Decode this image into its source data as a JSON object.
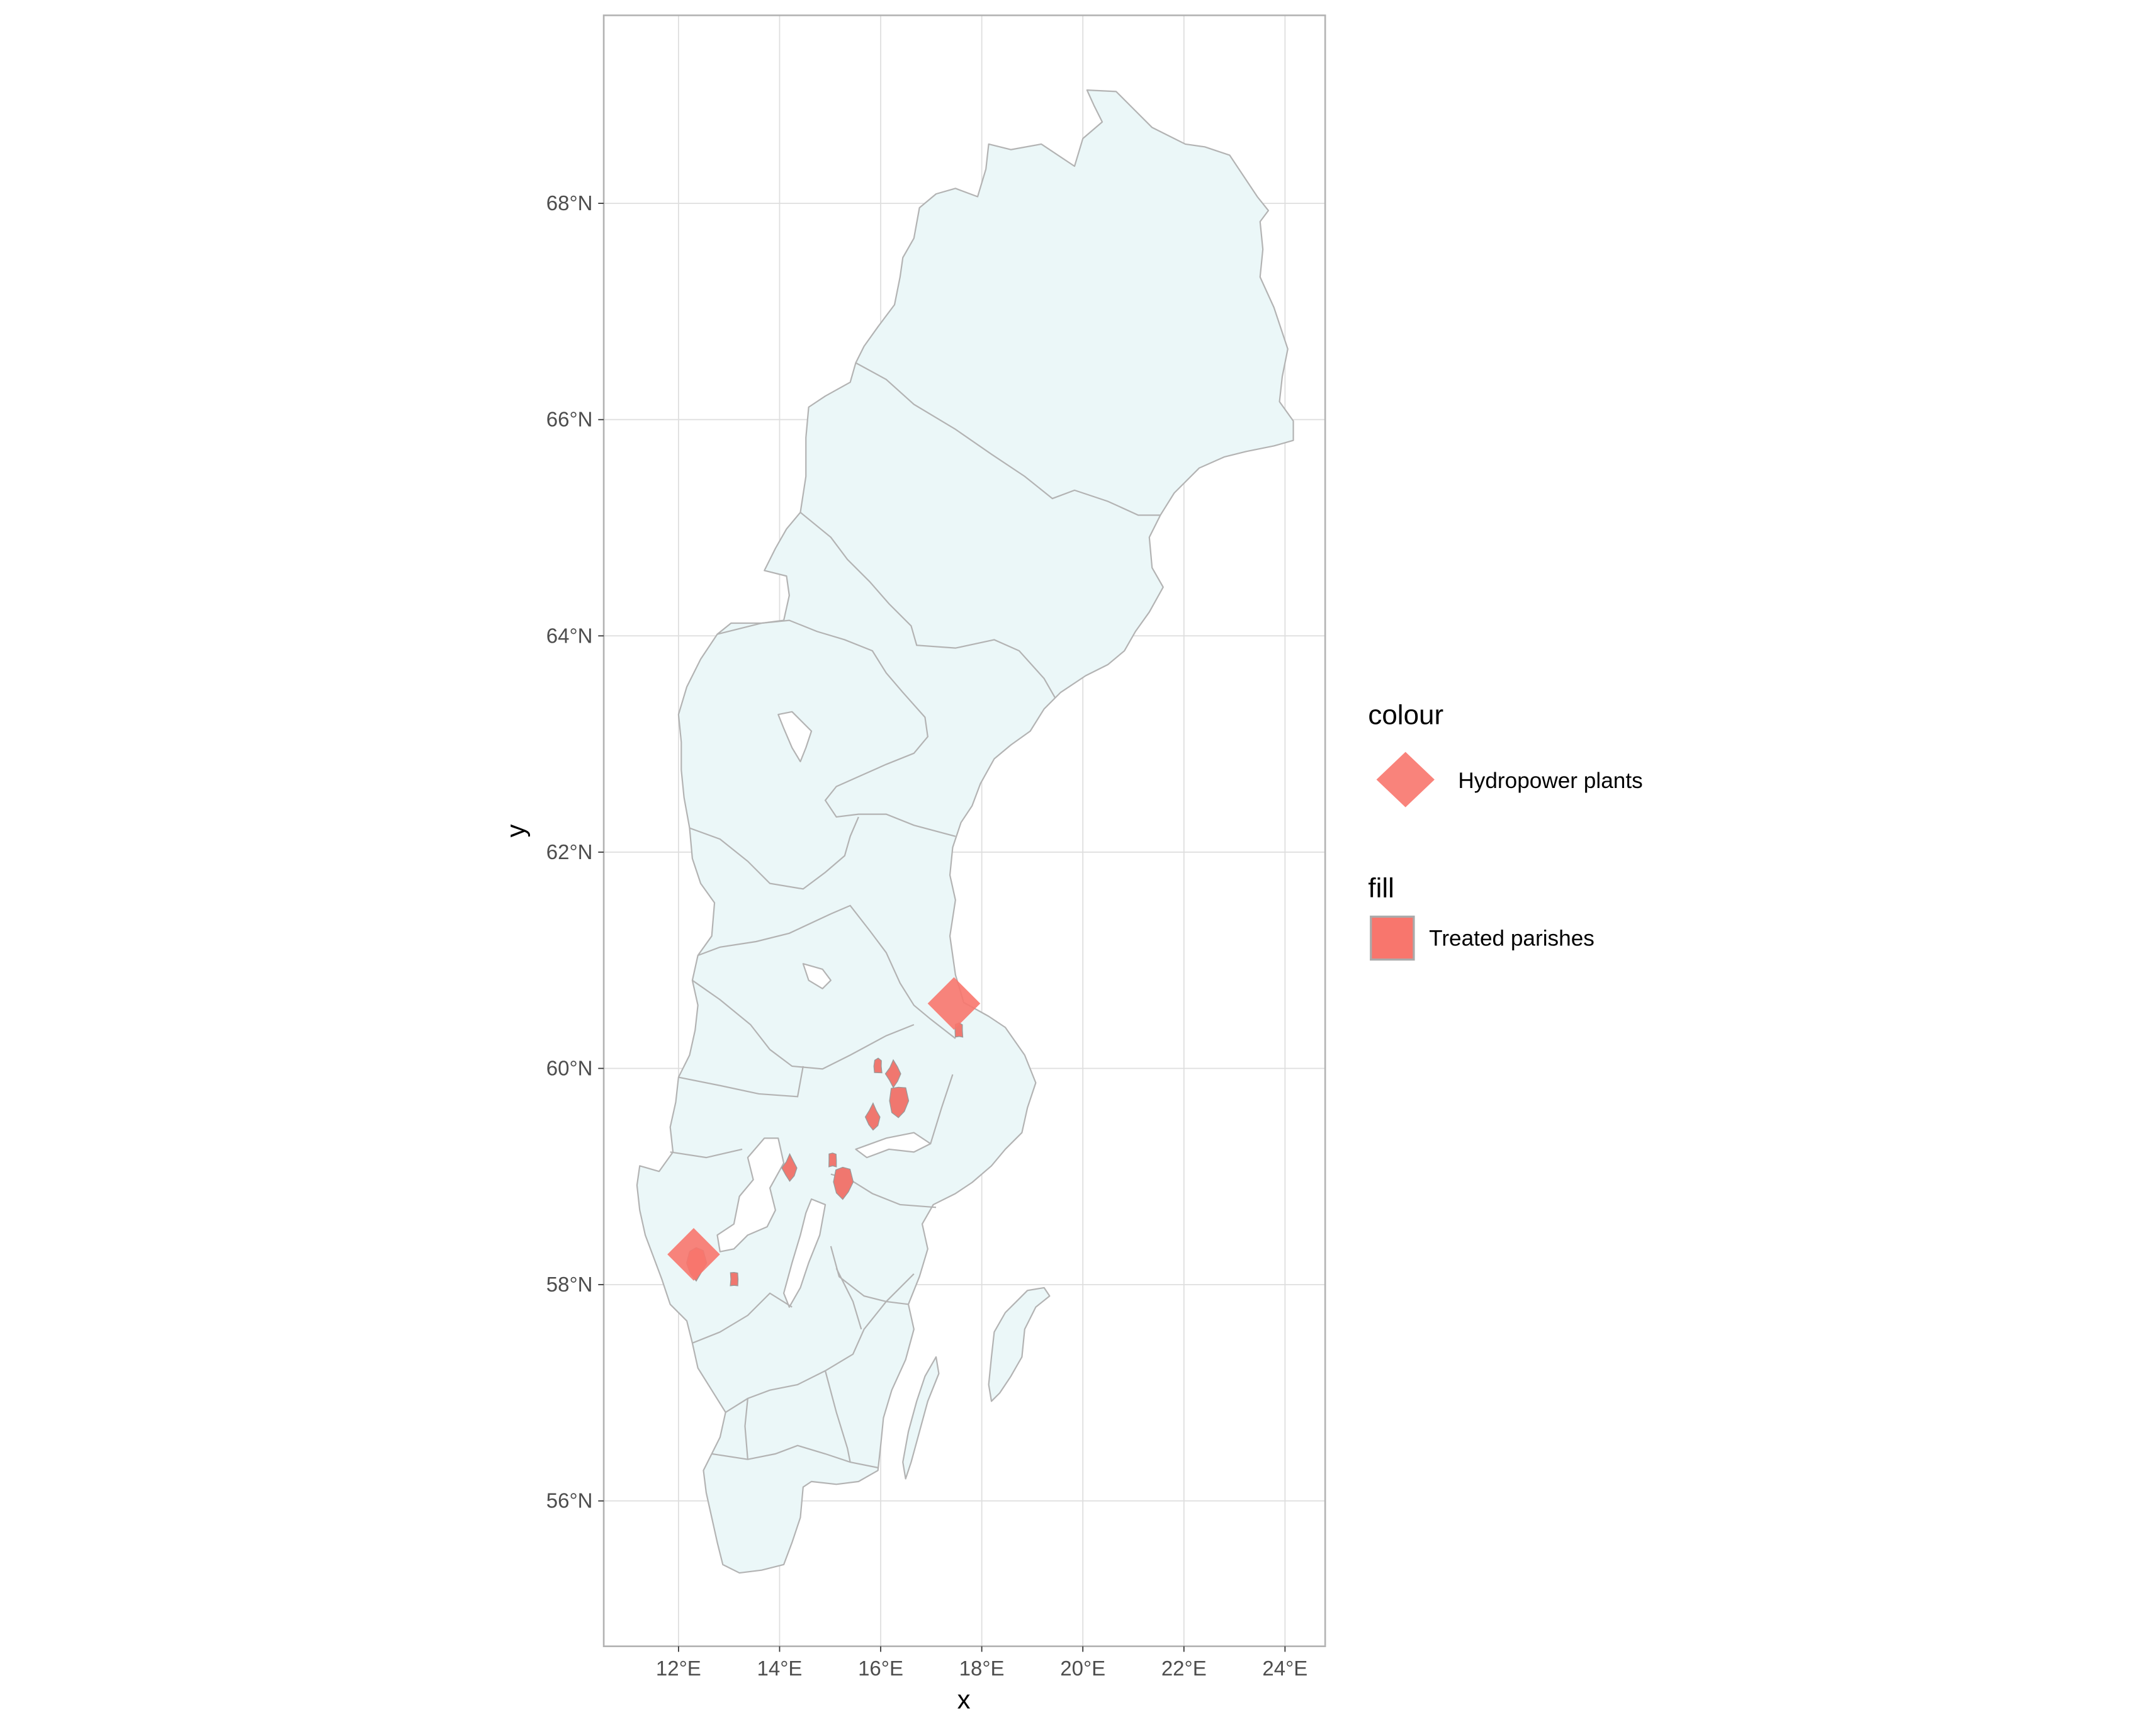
{
  "map": {
    "xlabel": "x",
    "ylabel": "y",
    "lon_range": [
      10.5,
      24.8
    ],
    "lat_range": [
      54.8,
      69.8
    ],
    "lon_ticks": [
      {
        "value": 12,
        "label": "12°E"
      },
      {
        "value": 14,
        "label": "14°E"
      },
      {
        "value": 16,
        "label": "16°E"
      },
      {
        "value": 18,
        "label": "18°E"
      },
      {
        "value": 20,
        "label": "20°E"
      },
      {
        "value": 22,
        "label": "22°E"
      },
      {
        "value": 24,
        "label": "24°E"
      }
    ],
    "lat_ticks": [
      {
        "value": 56,
        "label": "56°N"
      },
      {
        "value": 58,
        "label": "58°N"
      },
      {
        "value": 60,
        "label": "60°N"
      },
      {
        "value": 62,
        "label": "62°N"
      },
      {
        "value": 64,
        "label": "64°N"
      },
      {
        "value": 66,
        "label": "66°N"
      },
      {
        "value": 68,
        "label": "68°N"
      }
    ],
    "grid": true,
    "colors": {
      "land_fill": "#ebf7f8",
      "border": "#b3b3b3",
      "treated_fill": "#f0776f",
      "marker": "#f8766d",
      "grid": "#dedede",
      "panel_border": "#b3b3b3"
    },
    "hydropower_plants": [
      {
        "lon": 17.45,
        "lat": 60.6
      },
      {
        "lon": 12.3,
        "lat": 58.28
      }
    ],
    "treated_parishes": [
      {
        "lon": 15.95,
        "lat": 60.02
      },
      {
        "lon": 16.25,
        "lat": 59.95
      },
      {
        "lon": 16.35,
        "lat": 59.7
      },
      {
        "lon": 17.55,
        "lat": 60.35
      },
      {
        "lon": 14.2,
        "lat": 59.08
      },
      {
        "lon": 15.25,
        "lat": 58.95
      },
      {
        "lon": 15.05,
        "lat": 59.15
      },
      {
        "lon": 15.85,
        "lat": 59.55
      },
      {
        "lon": 12.35,
        "lat": 58.2
      },
      {
        "lon": 13.1,
        "lat": 58.05
      }
    ]
  },
  "legend": {
    "colour_title": "colour",
    "colour_label": "Hydropower plants",
    "fill_title": "fill",
    "fill_label": "Treated parishes"
  }
}
